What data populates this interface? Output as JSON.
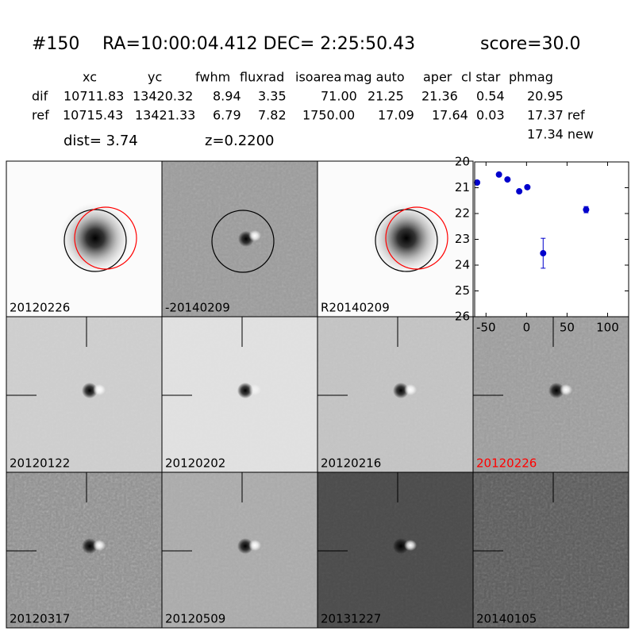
{
  "header": {
    "id": "#150",
    "coords": "RA=10:00:04.412 DEC= 2:25:50.43",
    "score": "score=30.0"
  },
  "table": {
    "columns": [
      "xc",
      "yc",
      "fwhm",
      "fluxrad",
      "isoarea",
      "mag auto",
      "aper",
      "cl star",
      "phmag"
    ],
    "rows": [
      [
        "dif",
        "10711.83",
        "13420.32",
        "8.94",
        "3.35",
        "71.00",
        "21.25",
        "21.36",
        "0.54",
        "20.95"
      ],
      [
        "ref",
        "10715.43",
        "13421.33",
        "6.79",
        "7.82",
        "1750.00",
        "17.09",
        "17.64",
        "0.03",
        "17.37 ref"
      ]
    ],
    "extra": "17.34 new"
  },
  "dist": "dist=  3.74",
  "redshift": "z=0.2200",
  "panels": [
    "20120226",
    "-20140209",
    "R20140209",
    "20120122",
    "20120202",
    "20120216",
    "20120226",
    "20120317",
    "20120509",
    "20131227",
    "20140105"
  ],
  "chart_data": {
    "type": "scatter",
    "x": [
      -61,
      -34,
      -23.5,
      -9,
      1,
      20.5,
      73.5
    ],
    "values": [
      20.8,
      20.49,
      20.68,
      21.14,
      20.98,
      23.54,
      21.85
    ],
    "errors": [
      0.04,
      0.04,
      0.04,
      0.04,
      0.04,
      0.58,
      0.12
    ],
    "color": "#0000cc",
    "xlim": [
      -64,
      126
    ],
    "ylim": [
      20,
      26
    ],
    "y_inverted": true,
    "xticks": [
      -50,
      0,
      50,
      100
    ],
    "yticks": [
      20,
      21,
      22,
      23,
      24,
      25,
      26
    ]
  }
}
